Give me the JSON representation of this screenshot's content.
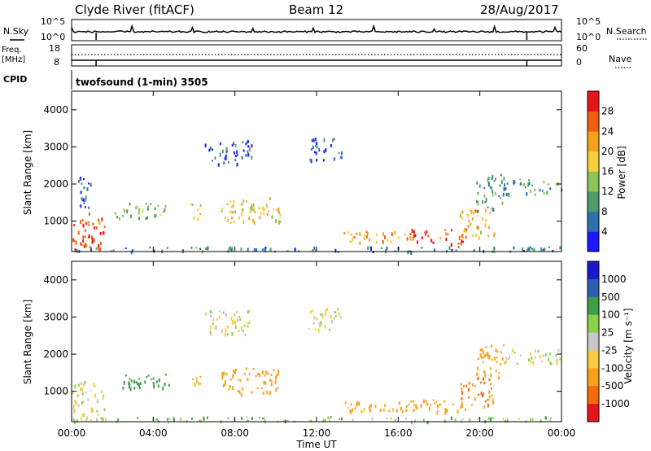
{
  "header": {
    "station": "Clyde River (fitACF)",
    "beam": "Beam 12",
    "date": "28/Aug/2017"
  },
  "noise_panel": {
    "left_label": "N.Sky",
    "right_label": "N.Search",
    "left_ticks": [
      "10^5",
      "10^0"
    ],
    "right_ticks": [
      "10^5",
      "10^0"
    ]
  },
  "freq_panel": {
    "left_label_line1": "Freq.",
    "left_label_line2": "[MHz]",
    "left_ticks": [
      "18",
      "8"
    ],
    "right_label": "Nave",
    "right_ticks": [
      "60",
      "0"
    ]
  },
  "cpid": {
    "label": "CPID",
    "value": "twofsound (1-min) 3505"
  },
  "x_axis": {
    "title": "Time UT",
    "ticks": [
      "00:00",
      "04:00",
      "08:00",
      "12:00",
      "16:00",
      "20:00",
      "00:00"
    ]
  },
  "colors": {
    "power_scale": [
      "#1a1aff",
      "#2e6fae",
      "#4f9b6a",
      "#8cc45a",
      "#f4d03c",
      "#f7a21a",
      "#f06010",
      "#e8141c"
    ],
    "velocity_scale": [
      "#e8141c",
      "#f46a0a",
      "#f7a21a",
      "#f8cc40",
      "#c8c8c8",
      "#8bd24a",
      "#3f9c48",
      "#2e5fae",
      "#1a1acc"
    ]
  },
  "chart_data": [
    {
      "type": "heatmap",
      "title": "",
      "xlabel": "",
      "ylabel": "Slant Range [km]",
      "x_range": [
        "00:00",
        "24:00"
      ],
      "ylim": [
        180,
        4500
      ],
      "yticks": [
        "1000",
        "2000",
        "3000",
        "4000"
      ],
      "colorbar": {
        "label": "Power [dB]",
        "range": [
          0,
          32
        ],
        "ticks": [
          "4",
          "8",
          "12",
          "16",
          "20",
          "24",
          "28"
        ]
      },
      "regions": [
        {
          "time": [
            0.0,
            1.6
          ],
          "range": [
            250,
            1200
          ],
          "value": 28
        },
        {
          "time": [
            0.3,
            1.0
          ],
          "range": [
            1200,
            2200
          ],
          "value": 6
        },
        {
          "time": [
            2.1,
            4.8
          ],
          "range": [
            1100,
            1500
          ],
          "value": 14
        },
        {
          "time": [
            5.8,
            6.3
          ],
          "range": [
            1100,
            1500
          ],
          "value": 20
        },
        {
          "time": [
            7.3,
            10.2
          ],
          "range": [
            950,
            1650
          ],
          "value": 18
        },
        {
          "time": [
            6.5,
            8.8
          ],
          "range": [
            2550,
            3200
          ],
          "value": 5
        },
        {
          "time": [
            11.5,
            13.2
          ],
          "range": [
            2650,
            3250
          ],
          "value": 5
        },
        {
          "time": [
            13.3,
            16.8
          ],
          "range": [
            450,
            750
          ],
          "value": 22
        },
        {
          "time": [
            16.5,
            19.3
          ],
          "range": [
            400,
            800
          ],
          "value": 28
        },
        {
          "time": [
            19.0,
            20.7
          ],
          "range": [
            600,
            1400
          ],
          "value": 20
        },
        {
          "time": [
            19.8,
            21.2
          ],
          "range": [
            1300,
            2300
          ],
          "value": 9
        },
        {
          "time": [
            21.2,
            24.0
          ],
          "range": [
            1750,
            2150
          ],
          "value": 10
        },
        {
          "time": [
            0.0,
            24.0
          ],
          "range": [
            200,
            330
          ],
          "value": 8
        }
      ]
    },
    {
      "type": "heatmap",
      "title": "",
      "xlabel": "Time UT",
      "ylabel": "Slant Range [km]",
      "x_range": [
        "00:00",
        "24:00"
      ],
      "ylim": [
        180,
        4500
      ],
      "yticks": [
        "1000",
        "2000",
        "3000",
        "4000"
      ],
      "colorbar": {
        "label": "Velocity [m s⁻¹]",
        "ticks": [
          "1000",
          "500",
          "100",
          "25",
          "-25",
          "-100",
          "-500",
          "-1000"
        ]
      },
      "regions": [
        {
          "time": [
            0.0,
            1.6
          ],
          "range": [
            250,
            1300
          ],
          "value": 0
        },
        {
          "time": [
            2.1,
            4.8
          ],
          "range": [
            1100,
            1500
          ],
          "value": 200
        },
        {
          "time": [
            5.8,
            6.3
          ],
          "range": [
            1100,
            1500
          ],
          "value": -150
        },
        {
          "time": [
            7.3,
            10.2
          ],
          "range": [
            950,
            1650
          ],
          "value": -300
        },
        {
          "time": [
            6.5,
            8.8
          ],
          "range": [
            2550,
            3200
          ],
          "value": 0
        },
        {
          "time": [
            11.5,
            13.2
          ],
          "range": [
            2650,
            3250
          ],
          "value": 0
        },
        {
          "time": [
            13.3,
            16.8
          ],
          "range": [
            450,
            750
          ],
          "value": -150
        },
        {
          "time": [
            16.5,
            19.3
          ],
          "range": [
            400,
            800
          ],
          "value": -300
        },
        {
          "time": [
            19.0,
            20.7
          ],
          "range": [
            600,
            1400
          ],
          "value": -500
        },
        {
          "time": [
            19.8,
            21.2
          ],
          "range": [
            1300,
            2300
          ],
          "value": -200
        },
        {
          "time": [
            21.2,
            24.0
          ],
          "range": [
            1750,
            2150
          ],
          "value": 0
        },
        {
          "time": [
            0.0,
            24.0
          ],
          "range": [
            200,
            330
          ],
          "value": 50
        }
      ]
    }
  ]
}
